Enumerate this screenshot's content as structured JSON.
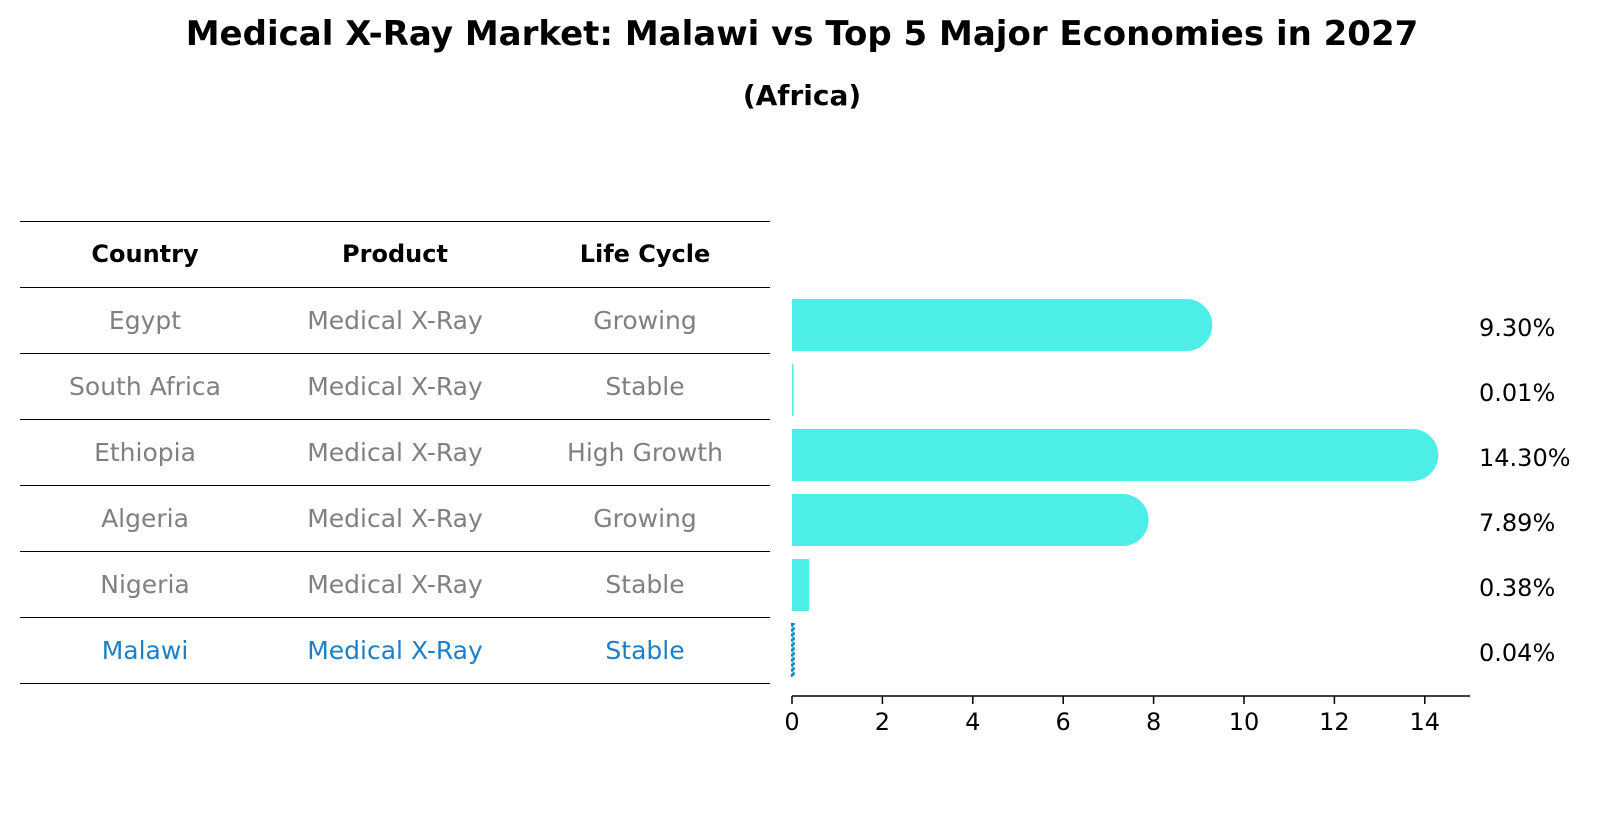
{
  "title": "Medical X-Ray Market: Malawi vs Top 5 Major Economies in 2027",
  "subtitle": "(Africa)",
  "table": {
    "headers": [
      "Country",
      "Product",
      "Life Cycle"
    ],
    "rows": [
      {
        "country": "Egypt",
        "product": "Medical X-Ray",
        "life_cycle": "Growing"
      },
      {
        "country": "South Africa",
        "product": "Medical X-Ray",
        "life_cycle": "Stable"
      },
      {
        "country": "Ethiopia",
        "product": "Medical X-Ray",
        "life_cycle": "High Growth"
      },
      {
        "country": "Algeria",
        "product": "Medical X-Ray",
        "life_cycle": "Growing"
      },
      {
        "country": "Nigeria",
        "product": "Medical X-Ray",
        "life_cycle": "Stable"
      },
      {
        "country": "Malawi",
        "product": "Medical X-Ray",
        "life_cycle": "Stable"
      }
    ],
    "highlight_row": 5
  },
  "chart_data": {
    "type": "bar",
    "orientation": "horizontal",
    "categories": [
      "Egypt",
      "South Africa",
      "Ethiopia",
      "Algeria",
      "Nigeria",
      "Malawi"
    ],
    "values": [
      9.3,
      0.01,
      14.3,
      7.89,
      0.38,
      0.04
    ],
    "value_labels": [
      "9.30%",
      "0.01%",
      "14.30%",
      "7.89%",
      "0.38%",
      "0.04%"
    ],
    "xlim": [
      0,
      15
    ],
    "xticks": [
      0,
      2,
      4,
      6,
      8,
      10,
      12,
      14
    ],
    "bar_color": "#4dede8",
    "highlight_color": "#1a80c8",
    "highlight_index": 5,
    "grid": false
  },
  "colors": {
    "table_text": "#808080",
    "highlight_text": "#1a80c8"
  }
}
